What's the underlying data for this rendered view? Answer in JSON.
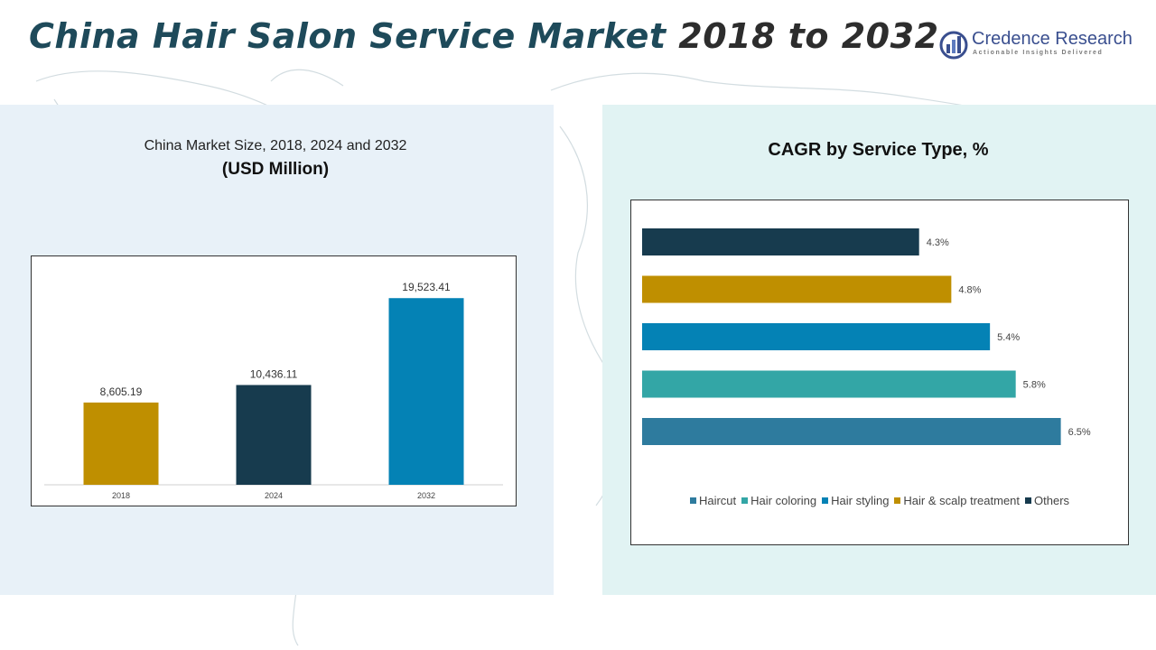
{
  "header": {
    "title_part1": "China Hair Salon Service Market ",
    "title_part2": "2018 to 2032",
    "title_color1": "#1e4a5a",
    "title_color2": "#2d2d2d"
  },
  "logo": {
    "name": "Credence Research",
    "tagline": "Actionable Insights Delivered",
    "icon": "bar-chart-circle-icon"
  },
  "left_panel": {
    "subtitle": "China Market Size, 2018, 2024 and 2032",
    "unit": "(USD Million)"
  },
  "right_panel": {
    "title": "CAGR by Service Type, %"
  },
  "chart_data": [
    {
      "type": "bar",
      "orientation": "vertical",
      "categories": [
        "2018",
        "2024",
        "2032"
      ],
      "values": [
        8605.19,
        10436.11,
        19523.41
      ],
      "data_labels": [
        "8,605.19",
        "10,436.11",
        "19,523.41"
      ],
      "colors": [
        "#bf8f00",
        "#173b4e",
        "#0482b5"
      ],
      "ylim": [
        0,
        22000
      ],
      "grid": false
    },
    {
      "type": "bar",
      "orientation": "horizontal",
      "categories": [
        "Others",
        "Hair & scalp treatment",
        "Hair styling",
        "Hair coloring",
        "Haircut"
      ],
      "values": [
        4.3,
        4.8,
        5.4,
        5.8,
        6.5
      ],
      "data_labels": [
        "4.3%",
        "4.8%",
        "5.4%",
        "5.8%",
        "6.5%"
      ],
      "colors": [
        "#173b4e",
        "#bf8f00",
        "#0482b5",
        "#33a6a6",
        "#2e7b9e"
      ],
      "xlim": [
        0,
        6.8
      ],
      "grid": false,
      "legend": {
        "placement": "bottom",
        "items": [
          {
            "label": "Haircut",
            "color": "#2e7b9e"
          },
          {
            "label": "Hair coloring",
            "color": "#33a6a6"
          },
          {
            "label": "Hair styling",
            "color": "#0482b5"
          },
          {
            "label": "Hair & scalp treatment",
            "color": "#bf8f00"
          },
          {
            "label": "Others",
            "color": "#173b4e"
          }
        ]
      }
    }
  ]
}
